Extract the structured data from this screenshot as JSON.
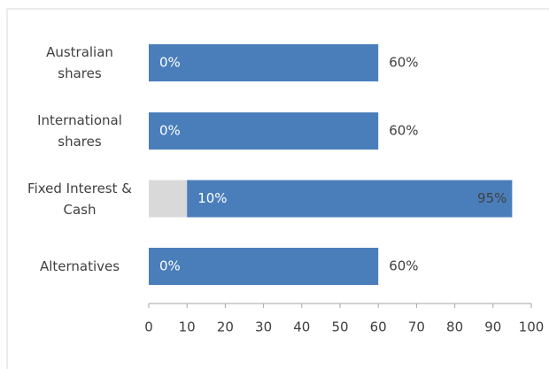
{
  "chart_data": {
    "type": "range-bar",
    "categories": [
      "Australian shares",
      "International shares",
      "Fixed Interest & Cash",
      "Alternatives"
    ],
    "series": [
      {
        "color": "#d9d9d9",
        "values": [
          0,
          0,
          10,
          0
        ],
        "value_labels": [
          "0%",
          "0%",
          "10%",
          "0%"
        ]
      },
      {
        "color": "#4a7ebb",
        "values": [
          60,
          60,
          95,
          60
        ],
        "value_labels": [
          "60%",
          "60%",
          "95%",
          "60%"
        ]
      }
    ],
    "xlim": [
      0,
      100
    ],
    "xticks": [
      0,
      10,
      20,
      30,
      40,
      50,
      60,
      70,
      80,
      90,
      100
    ],
    "grid": false
  }
}
